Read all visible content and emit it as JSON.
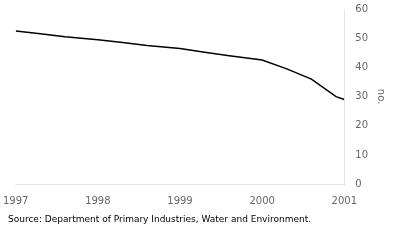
{
  "chart_data": {
    "type": "line",
    "x": [
      1997,
      1997.3,
      1997.6,
      1998.0,
      1998.3,
      1998.6,
      1999.0,
      1999.3,
      1999.6,
      2000.0,
      2000.3,
      2000.6,
      2000.9,
      2001.0
    ],
    "values": [
      52.5,
      51.5,
      50.5,
      49.5,
      48.5,
      47.5,
      46.5,
      45.2,
      44.0,
      42.5,
      39.5,
      36.0,
      30.0,
      29.0
    ],
    "color": "#000000",
    "xlim": [
      1997,
      2001
    ],
    "xticks": [
      1997,
      1998,
      1999,
      2000,
      2001
    ],
    "ylim": [
      0,
      60
    ],
    "yticks": [
      0,
      10,
      20,
      30,
      40,
      50,
      60
    ],
    "ylabel": "no.",
    "annotations": [
      "Source: Department of Primary Industries, Water and Environment."
    ],
    "grid": false
  }
}
